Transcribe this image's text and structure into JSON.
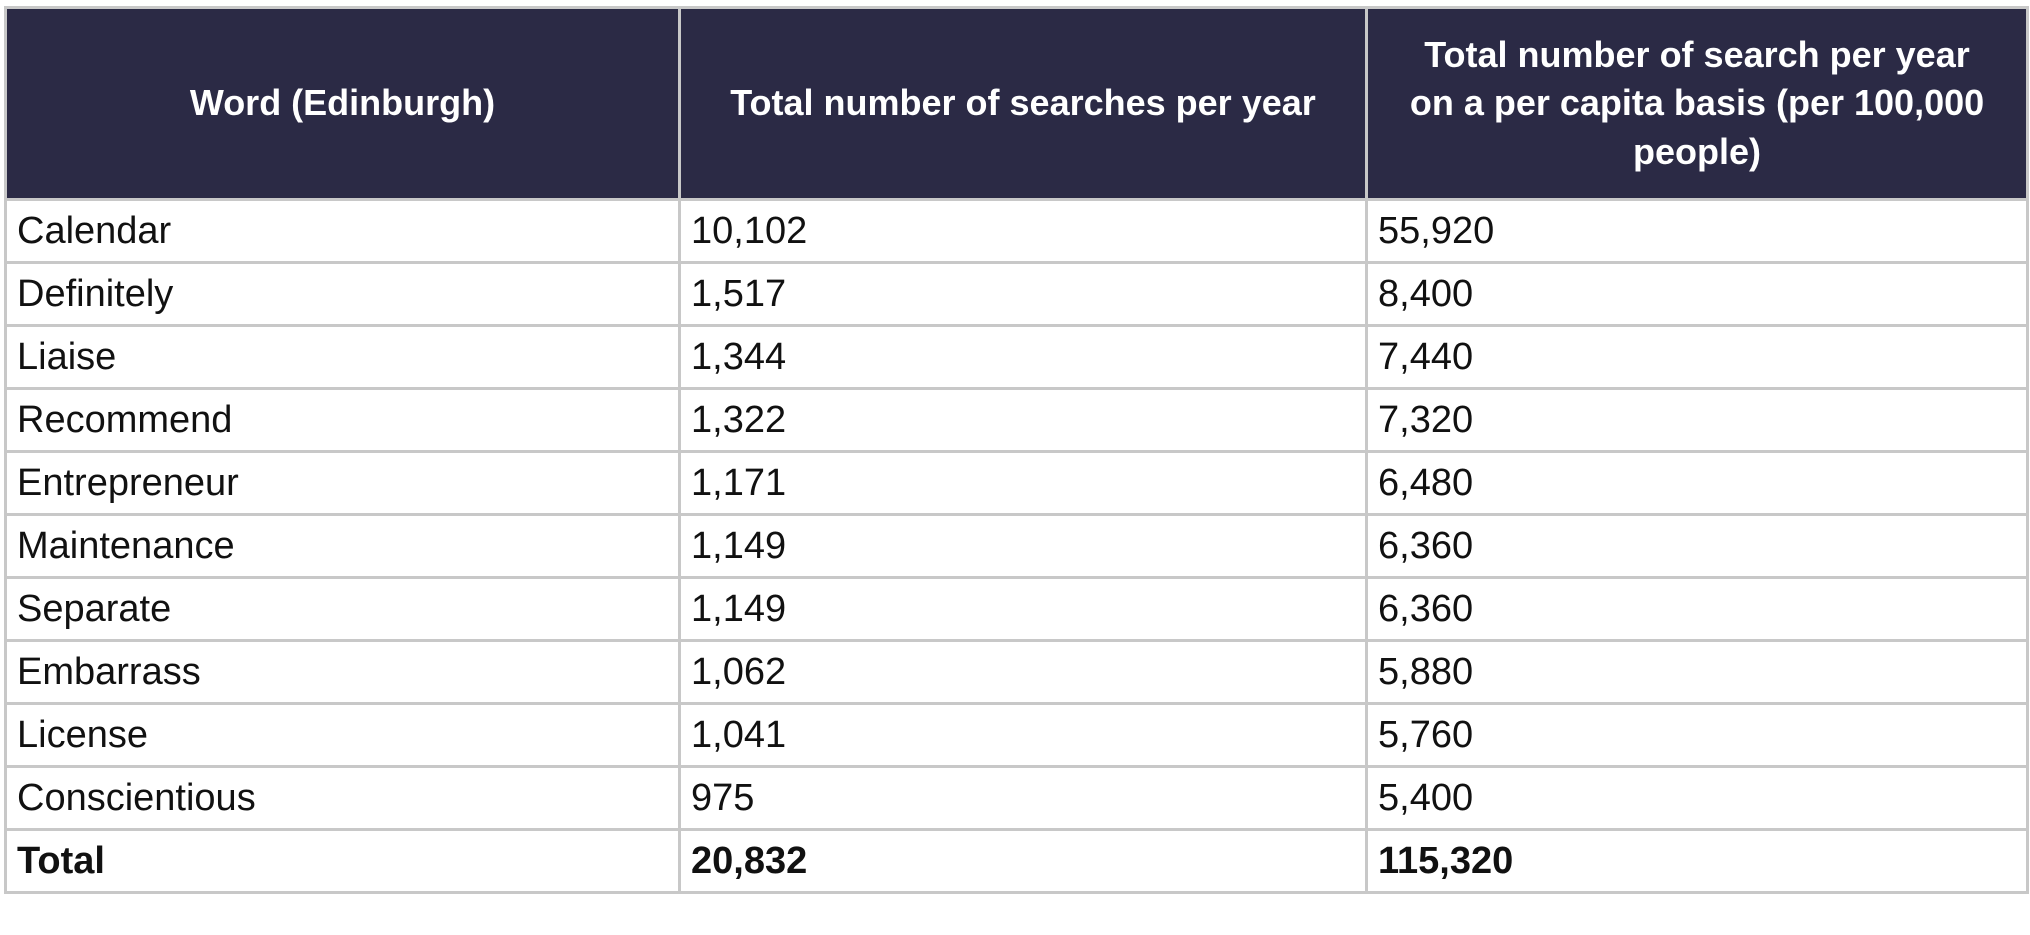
{
  "table": {
    "header": [
      "Word (Edinburgh)",
      "Total number of searches per year",
      "Total number of search per year on a per capita basis (per 100,000 people)"
    ],
    "rows": [
      [
        "Calendar",
        "10,102",
        "55,920"
      ],
      [
        "Definitely",
        "1,517",
        "8,400"
      ],
      [
        "Liaise",
        "1,344",
        "7,440"
      ],
      [
        "Recommend",
        "1,322",
        "7,320"
      ],
      [
        "Entrepreneur",
        "1,171",
        "6,480"
      ],
      [
        "Maintenance",
        "1,149",
        "6,360"
      ],
      [
        "Separate",
        "1,149",
        "6,360"
      ],
      [
        "Embarrass",
        "1,062",
        "5,880"
      ],
      [
        "License",
        "1,041",
        "5,760"
      ],
      [
        "Conscientious",
        "975",
        "5,400"
      ]
    ],
    "total": [
      "Total",
      "20,832",
      "115,320"
    ]
  }
}
